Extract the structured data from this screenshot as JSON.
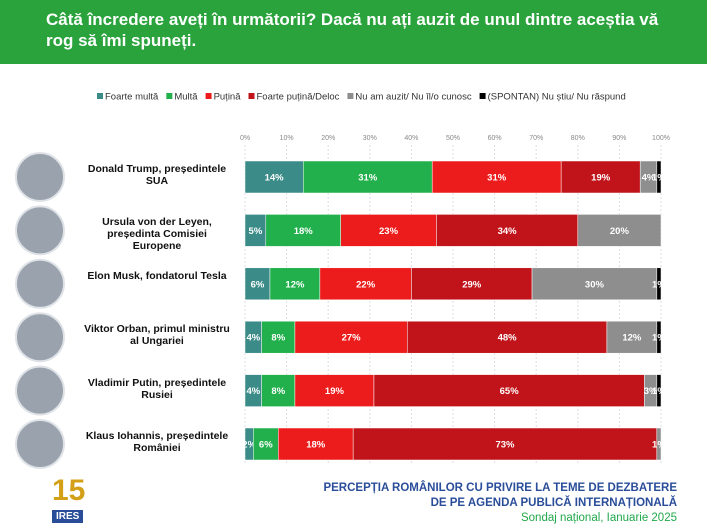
{
  "chart_data": {
    "type": "stacked-bar-horizontal",
    "title": "Câtă încredere aveți în următorii? Dacă nu ați auzit de unul dintre aceștia vă rog să îmi spuneți.",
    "categories": [
      "Donald Trump, președintele SUA",
      "Ursula von der Leyen, președinta Comisiei Europene",
      "Elon Musk, fondatorul Tesla",
      "Viktor Orban, primul ministru al Ungariei",
      "Vladimir Putin, președintele Rusiei",
      "Klaus Iohannis, președintele României"
    ],
    "series": [
      {
        "name": "Foarte multă",
        "color": "#3b8b88",
        "values": [
          14,
          5,
          6,
          4,
          4,
          2
        ],
        "value_labels": [
          "14%",
          "5%",
          "6%",
          "4%",
          "4%",
          "2%"
        ]
      },
      {
        "name": "Multă",
        "color": "#21b04b",
        "values": [
          31,
          18,
          12,
          8,
          8,
          6
        ],
        "value_labels": [
          "31%",
          "18%",
          "12%",
          "8%",
          "8%",
          "6%"
        ]
      },
      {
        "name": "Puțină",
        "color": "#ed1c1c",
        "values": [
          31,
          23,
          22,
          27,
          19,
          18
        ],
        "value_labels": [
          "31%",
          "23%",
          "22%",
          "27%",
          "19%",
          "18%"
        ]
      },
      {
        "name": "Foarte puțină/Deloc",
        "color": "#c0141a",
        "values": [
          19,
          34,
          29,
          48,
          65,
          73
        ],
        "value_labels": [
          "19%",
          "34%",
          "29%",
          "48%",
          "65%",
          "73%"
        ]
      },
      {
        "name": "Nu am auzit/ Nu îl/o cunosc",
        "color": "#8e8e8e",
        "values": [
          4,
          20,
          30,
          12,
          3,
          1
        ],
        "value_labels": [
          "4%",
          "20%",
          "30%",
          "12%",
          "3%",
          "1%"
        ]
      },
      {
        "name": "(SPONTAN) Nu știu/ Nu răspund",
        "color": "#000000",
        "values": [
          1,
          0,
          1,
          1,
          1,
          0
        ],
        "value_labels": [
          "1%",
          null,
          "1%",
          "1%",
          "1%",
          null
        ]
      }
    ],
    "xlim": [
      0,
      100
    ],
    "xticks": [
      {
        "value": 0,
        "label": "0%"
      },
      {
        "value": 10,
        "label": "10%"
      },
      {
        "value": 20,
        "label": "20%"
      },
      {
        "value": 30,
        "label": "30%"
      },
      {
        "value": 40,
        "label": "40%"
      },
      {
        "value": 50,
        "label": "50%"
      },
      {
        "value": 60,
        "label": "60%"
      },
      {
        "value": 70,
        "label": "70%"
      },
      {
        "value": 80,
        "label": "80%"
      },
      {
        "value": 90,
        "label": "90%"
      },
      {
        "value": 100,
        "label": "100%"
      }
    ]
  },
  "footer": {
    "lines": [
      "PERCEPȚIA ROMÂNILOR CU PRIVIRE LA TEME DE DEZBATERE",
      "DE PE AGENDA PUBLICĂ INTERNAȚIONALĂ",
      "Sondaj național, Ianuarie 2025"
    ],
    "logo": [
      "15",
      "IRES"
    ]
  }
}
